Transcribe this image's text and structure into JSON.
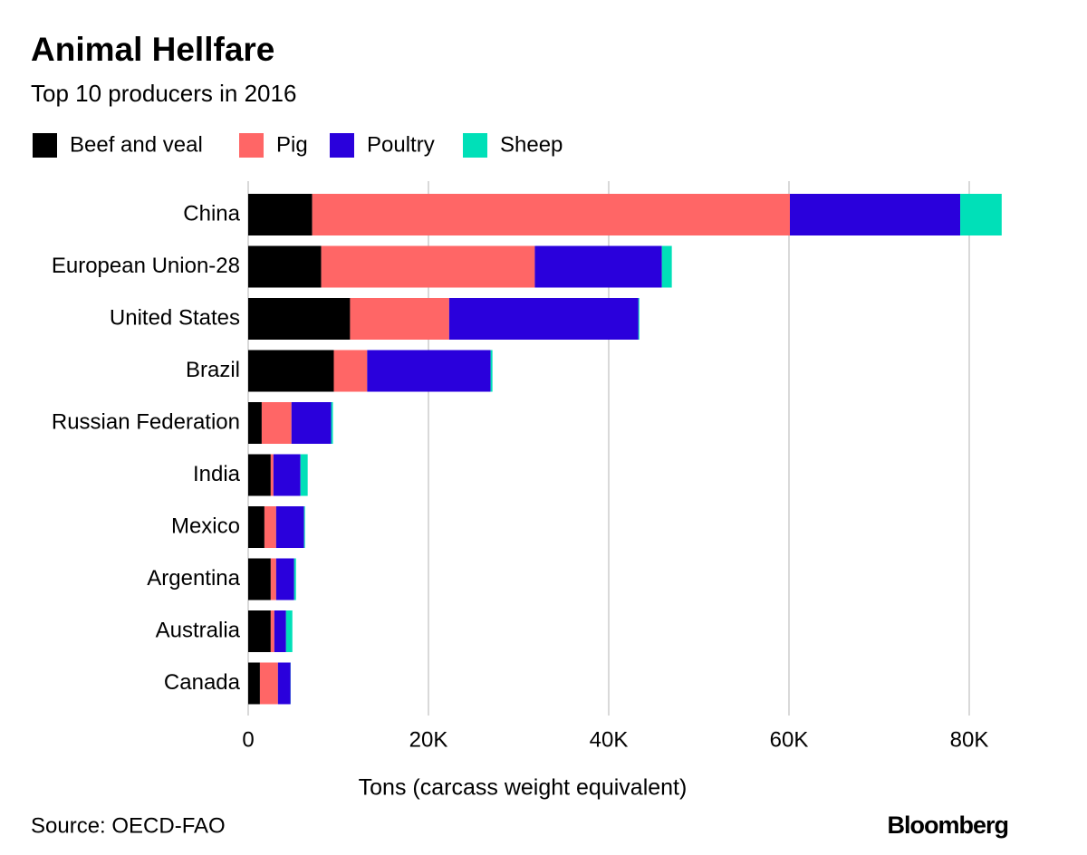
{
  "chart_data": {
    "type": "stacked-barh",
    "title": "Animal Hellfare",
    "subtitle": "Top 10 producers in 2016",
    "x_label": "Tons (carcass weight equivalent)",
    "source": "Source: OECD-FAO",
    "brand": "Bloomberg",
    "categories": [
      "China",
      "European Union-28",
      "United States",
      "Brazil",
      "Russian Federation",
      "India",
      "Mexico",
      "Argentina",
      "Australia",
      "Canada"
    ],
    "series": [
      {
        "name": "Beef and veal",
        "color": "#000000",
        "values": [
          7100,
          8100,
          11300,
          9500,
          1500,
          2500,
          1800,
          2500,
          2500,
          1300
        ]
      },
      {
        "name": "Pig",
        "color": "#ff6666",
        "values": [
          53000,
          23700,
          11000,
          3700,
          3300,
          300,
          1300,
          600,
          400,
          2000
        ]
      },
      {
        "name": "Poultry",
        "color": "#2a00dc",
        "values": [
          18900,
          14100,
          21000,
          13700,
          4400,
          3000,
          3100,
          2000,
          1300,
          1400
        ]
      },
      {
        "name": "Sheep",
        "color": "#00e0b8",
        "values": [
          4600,
          1100,
          100,
          200,
          200,
          800,
          100,
          200,
          700,
          20
        ]
      }
    ],
    "xlim": [
      0,
      84000
    ],
    "xticks": [
      0,
      {
        "value": 20000,
        "label": "20K"
      },
      {
        "value": 40000,
        "label": "40K"
      },
      {
        "value": 60000,
        "label": "60K"
      },
      {
        "value": 80000,
        "label": "80K"
      }
    ],
    "grid": true
  }
}
